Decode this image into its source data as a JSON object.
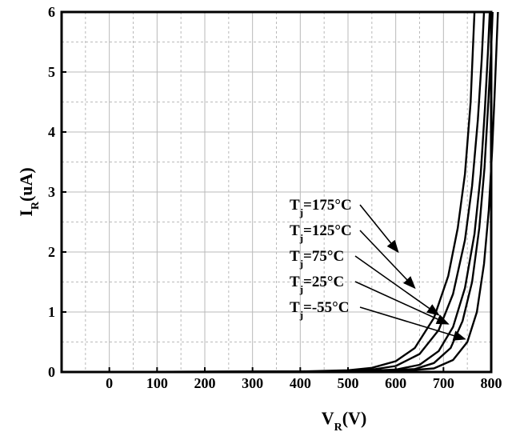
{
  "chart_data": {
    "type": "line",
    "title": "",
    "xlabel": {
      "main": "V",
      "sub": "R",
      "tail": "(V)"
    },
    "ylabel": {
      "main": "I",
      "sub": "R",
      "tail": "(uA)"
    },
    "xlim": [
      -100,
      800
    ],
    "ylim": [
      0,
      6
    ],
    "x_ticks": [
      0,
      100,
      200,
      300,
      400,
      500,
      600,
      700,
      800
    ],
    "x_tick_labels": [
      "0",
      "100",
      "200",
      "300",
      "400",
      "500",
      "600",
      "700",
      "800"
    ],
    "y_ticks": [
      0,
      1,
      2,
      3,
      4,
      5,
      6
    ],
    "y_tick_labels": [
      "0",
      "1",
      "2",
      "3",
      "4",
      "5",
      "6"
    ],
    "grid": true,
    "legend": "none",
    "series": [
      {
        "x": [
          -100,
          400,
          500,
          550,
          600,
          640,
          680,
          710,
          730,
          745,
          757,
          765
        ],
        "y": [
          0,
          0.01,
          0.03,
          0.07,
          0.18,
          0.4,
          0.9,
          1.6,
          2.4,
          3.3,
          4.5,
          6.0
        ]
      },
      {
        "x": [
          -100,
          450,
          550,
          600,
          650,
          690,
          720,
          745,
          760,
          772,
          780,
          785
        ],
        "y": [
          0,
          0.01,
          0.04,
          0.1,
          0.3,
          0.7,
          1.3,
          2.2,
          3.1,
          4.2,
          5.2,
          6.0
        ]
      },
      {
        "x": [
          -100,
          500,
          600,
          650,
          690,
          720,
          745,
          765,
          778,
          787,
          793,
          797
        ],
        "y": [
          0,
          0.01,
          0.04,
          0.12,
          0.35,
          0.75,
          1.4,
          2.3,
          3.3,
          4.4,
          5.3,
          6.0
        ]
      },
      {
        "x": [
          -100,
          550,
          640,
          680,
          715,
          740,
          760,
          775,
          786,
          794,
          800,
          803
        ],
        "y": [
          0,
          0.01,
          0.05,
          0.15,
          0.4,
          0.85,
          1.5,
          2.4,
          3.4,
          4.5,
          5.4,
          6.0
        ]
      },
      {
        "x": [
          -100,
          600,
          680,
          720,
          750,
          770,
          785,
          795,
          802,
          807,
          811,
          814
        ],
        "y": [
          0,
          0.01,
          0.06,
          0.2,
          0.5,
          1.0,
          1.8,
          2.7,
          3.7,
          4.6,
          5.4,
          6.0
        ]
      }
    ],
    "annotations": [
      {
        "main": "T",
        "sub": "j",
        "tail": "=175°C",
        "x": 605,
        "y": 2.0
      },
      {
        "main": "T",
        "sub": "j",
        "tail": "=125°C",
        "x": 640,
        "y": 1.4
      },
      {
        "main": "T",
        "sub": "j",
        "tail": "=75°C",
        "x": 690,
        "y": 0.95
      },
      {
        "main": "T",
        "sub": "j",
        "tail": "=25°C",
        "x": 710,
        "y": 0.8
      },
      {
        "main": "T",
        "sub": "j",
        "tail": "=-55°C",
        "x": 745,
        "y": 0.55
      }
    ]
  }
}
